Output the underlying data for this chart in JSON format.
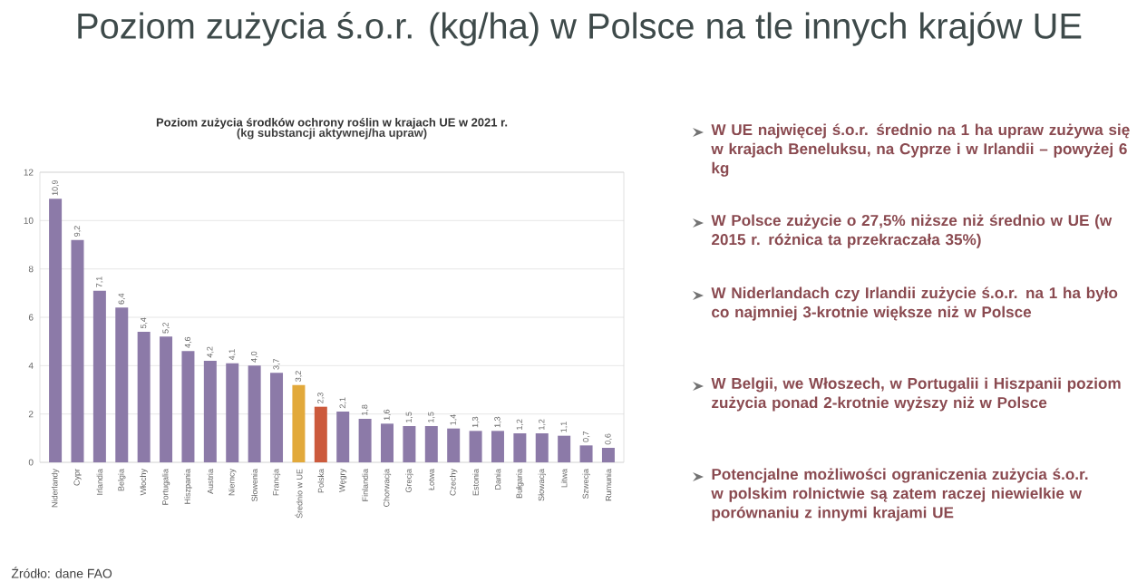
{
  "chart_data": [
    {
      "type": "bar",
      "title": "Poziom zużycia ś.o.r. (kg/ha) w Polsce na tle innych krajów UE",
      "subtitle": "Poziom zużycia środków ochrony roślin w krajach UE w 2021 r.",
      "annotations": [
        "(kg substancji aktywnej/ha upraw)",
        "Źródło: dane FAO"
      ],
      "categories": [
        "Niderlandy",
        "Cypr",
        "Irlandia",
        "Belgia",
        "Włochy",
        "Portugalia",
        "Hiszpania",
        "Austria",
        "Niemcy",
        "Słowenia",
        "Francja",
        "Średnio w UE",
        "Polska",
        "Węgry",
        "Finlandia",
        "Chorwacja",
        "Grecja",
        "Łotwa",
        "Czechy",
        "Estonia",
        "Dania",
        "Bułgaria",
        "Słowacja",
        "Litwa",
        "Szwecja",
        "Rumunia"
      ],
      "values": [
        10.9,
        9.2,
        7.1,
        6.4,
        5.4,
        5.2,
        4.6,
        4.2,
        4.1,
        4.0,
        3.7,
        3.2,
        2.3,
        2.1,
        1.8,
        1.6,
        1.5,
        1.5,
        1.4,
        1.3,
        1.3,
        1.2,
        1.2,
        1.1,
        0.7,
        0.6
      ],
      "value_labels": [
        "10,9",
        "9,2",
        "7,1",
        "6,4",
        "5,4",
        "5,2",
        "4,6",
        "4,2",
        "4,1",
        "4,0",
        "3,7",
        "3,2",
        "2,3",
        "2,1",
        "1,8",
        "1,6",
        "1,5",
        "1,5",
        "1,4",
        "1,3",
        "1,3",
        "1,2",
        "1,2",
        "1,1",
        "0,7",
        "0,6"
      ],
      "colors": [
        "#8c7aa8",
        "#8c7aa8",
        "#8c7aa8",
        "#8c7aa8",
        "#8c7aa8",
        "#8c7aa8",
        "#8c7aa8",
        "#8c7aa8",
        "#8c7aa8",
        "#8c7aa8",
        "#8c7aa8",
        "#e2a93b",
        "#cc5a3c",
        "#8c7aa8",
        "#8c7aa8",
        "#8c7aa8",
        "#8c7aa8",
        "#8c7aa8",
        "#8c7aa8",
        "#8c7aa8",
        "#8c7aa8",
        "#8c7aa8",
        "#8c7aa8",
        "#8c7aa8",
        "#8c7aa8",
        "#8c7aa8"
      ],
      "ylim": [
        0,
        12
      ],
      "yticks": [
        0,
        2,
        4,
        6,
        8,
        10,
        12
      ],
      "grid": "y"
    },
    {
      "type": "other",
      "annotations": [
        "W UE najwięcej ś.o.r. średnio na 1 ha upraw zużywa się w krajach Beneluksu, na Cyprze i w Irlandii – powyżej 6 kg",
        "W Polsce zużycie o 27,5% niższe niż średnio w UE (w 2015 r. różnica ta przekraczała 35%)",
        "W Niderlandach czy Irlandii zużycie ś.o.r. na 1 ha było co najmniej 3-krotnie większe niż w Polsce",
        "W Belgii, we Włoszech, w Portugalii i Hiszpanii poziom zużycia ponad 2-krotnie wyższy niż w Polsce",
        "Potencjalne możliwości ograniczenia zużycia ś.o.r. w polskim rolnictwie są zatem raczej niewielkie w porównaniu z innymi krajami UE"
      ]
    }
  ]
}
